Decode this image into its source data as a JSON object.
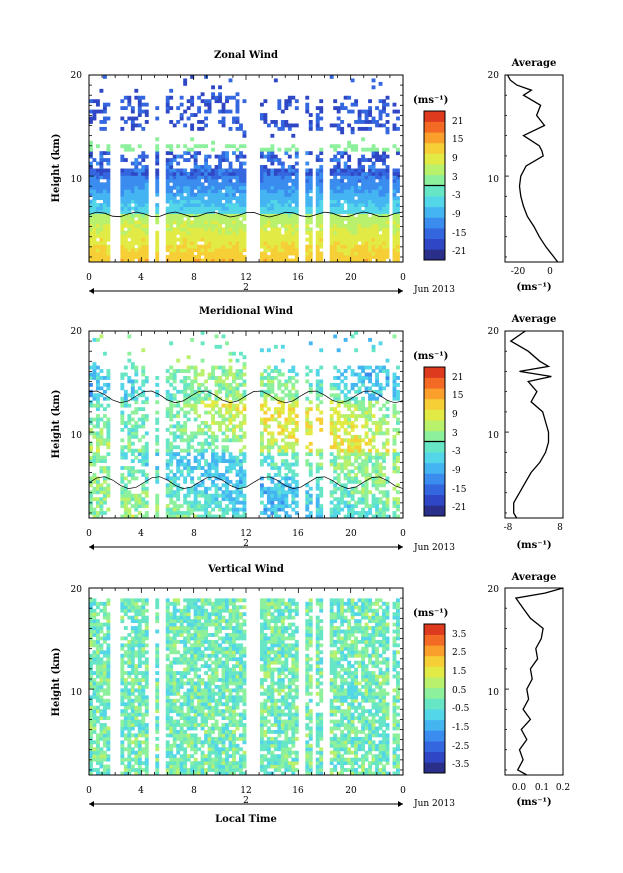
{
  "figure": {
    "x_axis_label": "Local Time",
    "date_label": "Jun 2013",
    "day_marker": "2"
  },
  "colorscale": {
    "colors": [
      "#2a2f8a",
      "#2f47c4",
      "#3467df",
      "#3b8cef",
      "#45b5f2",
      "#52d6e8",
      "#67e6c6",
      "#8df09c",
      "#b9f06c",
      "#e2ea45",
      "#f6cf36",
      "#fa9e2c",
      "#f26a24",
      "#dd3a1e"
    ]
  },
  "chart_data": [
    {
      "type": "heatmap",
      "title": "Zonal Wind",
      "ylabel": "Height (km)",
      "x_ticks": [
        "0",
        "4",
        "8",
        "12",
        "16",
        "20",
        "0"
      ],
      "y_ticks": [
        "10",
        "20"
      ],
      "x_range": [
        0,
        24
      ],
      "y_range": [
        1.5,
        20
      ],
      "units": "(ms⁻¹)",
      "colorbar_ticks": [
        "21",
        "15",
        "9",
        "3",
        "-3",
        "-9",
        "-15",
        "-21"
      ],
      "colorbar_range": [
        -24,
        24
      ],
      "zero_contour": true,
      "average_profile": {
        "title": "Average",
        "xlabel": "(ms⁻¹)",
        "x_ticks": [
          "-20",
          "0"
        ],
        "x_range": [
          -32,
          12
        ],
        "y_ticks": [
          "10",
          "20"
        ],
        "height_km": [
          1.5,
          2,
          3,
          4,
          5,
          6,
          7,
          8,
          9,
          10,
          11,
          12,
          12.5,
          13,
          14,
          15,
          16,
          17,
          18,
          18.5,
          19,
          19.5,
          20
        ],
        "value": [
          8,
          5,
          -1,
          -6,
          -10,
          -15,
          -18,
          -20,
          -21,
          -20,
          -16,
          -3,
          -4,
          -6,
          -18,
          -2,
          -8,
          -5,
          -18,
          -12,
          -23,
          -28,
          -30
        ]
      }
    },
    {
      "type": "heatmap",
      "title": "Meridional Wind",
      "ylabel": "Height (km)",
      "x_ticks": [
        "0",
        "4",
        "8",
        "12",
        "16",
        "20",
        "0"
      ],
      "y_ticks": [
        "10",
        "20"
      ],
      "x_range": [
        0,
        24
      ],
      "y_range": [
        1.5,
        20
      ],
      "units": "(ms⁻¹)",
      "colorbar_ticks": [
        "21",
        "15",
        "9",
        "3",
        "-3",
        "-9",
        "-15",
        "-21"
      ],
      "colorbar_range": [
        -24,
        24
      ],
      "zero_contour": true,
      "average_profile": {
        "title": "Average",
        "xlabel": "(ms⁻¹)",
        "x_ticks": [
          "-8",
          "8"
        ],
        "x_range": [
          -10,
          10
        ],
        "y_ticks": [
          "10",
          "20"
        ],
        "height_km": [
          1.5,
          2,
          3,
          4,
          5,
          6,
          7,
          8,
          9,
          10,
          11,
          12,
          13,
          14,
          15,
          15.5,
          16,
          16.5,
          17,
          18,
          19,
          20
        ],
        "value": [
          -6,
          -7,
          -7,
          -5,
          -3,
          -1,
          2,
          4,
          5,
          5,
          4,
          3,
          -1,
          1,
          -2,
          6,
          -5,
          5,
          2,
          -2,
          -8,
          -3
        ]
      }
    },
    {
      "type": "heatmap",
      "title": "Vertical Wind",
      "ylabel": "Height (km)",
      "x_ticks": [
        "0",
        "4",
        "8",
        "12",
        "16",
        "20",
        "0"
      ],
      "y_ticks": [
        "10",
        "20"
      ],
      "x_range": [
        0,
        24
      ],
      "y_range": [
        1.5,
        20
      ],
      "units": "(ms⁻¹)",
      "colorbar_ticks": [
        "3.5",
        "2.5",
        "1.5",
        "0.5",
        "-0.5",
        "-1.5",
        "-2.5",
        "-3.5"
      ],
      "colorbar_range": [
        -4,
        4
      ],
      "zero_contour": false,
      "average_profile": {
        "title": "Average",
        "xlabel": "(ms⁻¹)",
        "x_ticks": [
          "0.0",
          "0.1",
          "0.2"
        ],
        "x_range": [
          -0.12,
          0.2
        ],
        "y_ticks": [
          "10",
          "20"
        ],
        "height_km": [
          1.5,
          2,
          3,
          4,
          5,
          6,
          7,
          8,
          9,
          10,
          11,
          12,
          13,
          14,
          15,
          16,
          17,
          18,
          19,
          19.5,
          20
        ],
        "value": [
          0.0,
          -0.05,
          -0.02,
          -0.04,
          0.0,
          -0.03,
          0.02,
          -0.02,
          0.01,
          0.0,
          0.03,
          0.02,
          0.06,
          0.05,
          0.08,
          0.09,
          0.02,
          -0.02,
          -0.06,
          0.1,
          0.2
        ]
      }
    }
  ]
}
